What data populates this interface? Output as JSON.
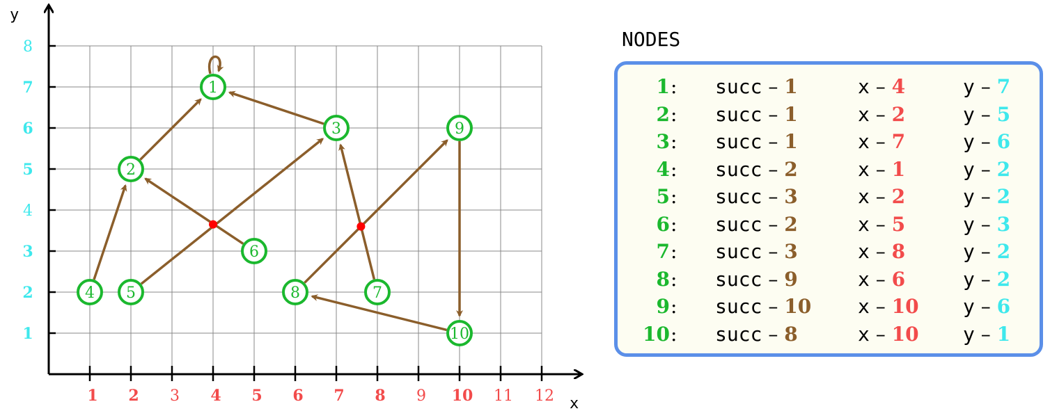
{
  "graph": {
    "axis_x_label": "x",
    "axis_y_label": "y",
    "x_ticks": [
      {
        "value": 1,
        "label": "1",
        "bold": true
      },
      {
        "value": 2,
        "label": "2",
        "bold": true
      },
      {
        "value": 3,
        "label": "3",
        "bold": false
      },
      {
        "value": 4,
        "label": "4",
        "bold": true
      },
      {
        "value": 5,
        "label": "5",
        "bold": true
      },
      {
        "value": 6,
        "label": "6",
        "bold": true
      },
      {
        "value": 7,
        "label": "7",
        "bold": true
      },
      {
        "value": 8,
        "label": "8",
        "bold": true
      },
      {
        "value": 9,
        "label": "9",
        "bold": false
      },
      {
        "value": 10,
        "label": "10",
        "bold": true
      },
      {
        "value": 11,
        "label": "11",
        "bold": false
      },
      {
        "value": 12,
        "label": "12",
        "bold": false
      }
    ],
    "y_ticks": [
      {
        "value": 1,
        "label": "1",
        "bold": true
      },
      {
        "value": 2,
        "label": "2",
        "bold": true
      },
      {
        "value": 3,
        "label": "3",
        "bold": true
      },
      {
        "value": 4,
        "label": "4",
        "bold": false
      },
      {
        "value": 5,
        "label": "5",
        "bold": true
      },
      {
        "value": 6,
        "label": "6",
        "bold": true
      },
      {
        "value": 7,
        "label": "7",
        "bold": true
      },
      {
        "value": 8,
        "label": "8",
        "bold": false
      }
    ],
    "grid_x_max": 12,
    "grid_y_max": 8,
    "nodes": [
      {
        "id": "1",
        "x": 4,
        "y": 7
      },
      {
        "id": "2",
        "x": 2,
        "y": 5
      },
      {
        "id": "3",
        "x": 7,
        "y": 6
      },
      {
        "id": "4",
        "x": 1,
        "y": 2
      },
      {
        "id": "5",
        "x": 2,
        "y": 2
      },
      {
        "id": "6",
        "x": 5,
        "y": 3
      },
      {
        "id": "7",
        "x": 8,
        "y": 2
      },
      {
        "id": "8",
        "x": 6,
        "y": 2
      },
      {
        "id": "9",
        "x": 10,
        "y": 6
      },
      {
        "id": "10",
        "x": 10,
        "y": 1
      }
    ],
    "edges": [
      {
        "from": "1",
        "to": "1"
      },
      {
        "from": "2",
        "to": "1"
      },
      {
        "from": "3",
        "to": "1"
      },
      {
        "from": "4",
        "to": "2"
      },
      {
        "from": "5",
        "to": "3"
      },
      {
        "from": "6",
        "to": "2"
      },
      {
        "from": "7",
        "to": "3"
      },
      {
        "from": "8",
        "to": "9"
      },
      {
        "from": "9",
        "to": "10"
      },
      {
        "from": "10",
        "to": "8"
      }
    ],
    "crossing_points": [
      {
        "x": 4.0,
        "y": 3.65
      },
      {
        "x": 7.6,
        "y": 3.6
      }
    ],
    "colors": {
      "node": "#1bb82e",
      "edge": "#8b5e2b",
      "crossing": "#ff0000",
      "x_tick": "#f24b4b",
      "y_tick": "#3ee8ec",
      "panel_border": "#5b8fe8",
      "panel_bg": "#fdfdf2"
    }
  },
  "panel": {
    "title": "NODES",
    "key_succ": "succ",
    "key_x": "x",
    "key_y": "y",
    "dash": "–",
    "colon": ":",
    "rows": [
      {
        "id": "1",
        "succ": "1",
        "x": "4",
        "y": "7"
      },
      {
        "id": "2",
        "succ": "1",
        "x": "2",
        "y": "5"
      },
      {
        "id": "3",
        "succ": "1",
        "x": "7",
        "y": "6"
      },
      {
        "id": "4",
        "succ": "2",
        "x": "1",
        "y": "2"
      },
      {
        "id": "5",
        "succ": "3",
        "x": "2",
        "y": "2"
      },
      {
        "id": "6",
        "succ": "2",
        "x": "5",
        "y": "3"
      },
      {
        "id": "7",
        "succ": "3",
        "x": "8",
        "y": "2"
      },
      {
        "id": "8",
        "succ": "9",
        "x": "6",
        "y": "2"
      },
      {
        "id": "9",
        "succ": "10",
        "x": "10",
        "y": "6"
      },
      {
        "id": "10",
        "succ": "8",
        "x": "10",
        "y": "1"
      }
    ]
  }
}
